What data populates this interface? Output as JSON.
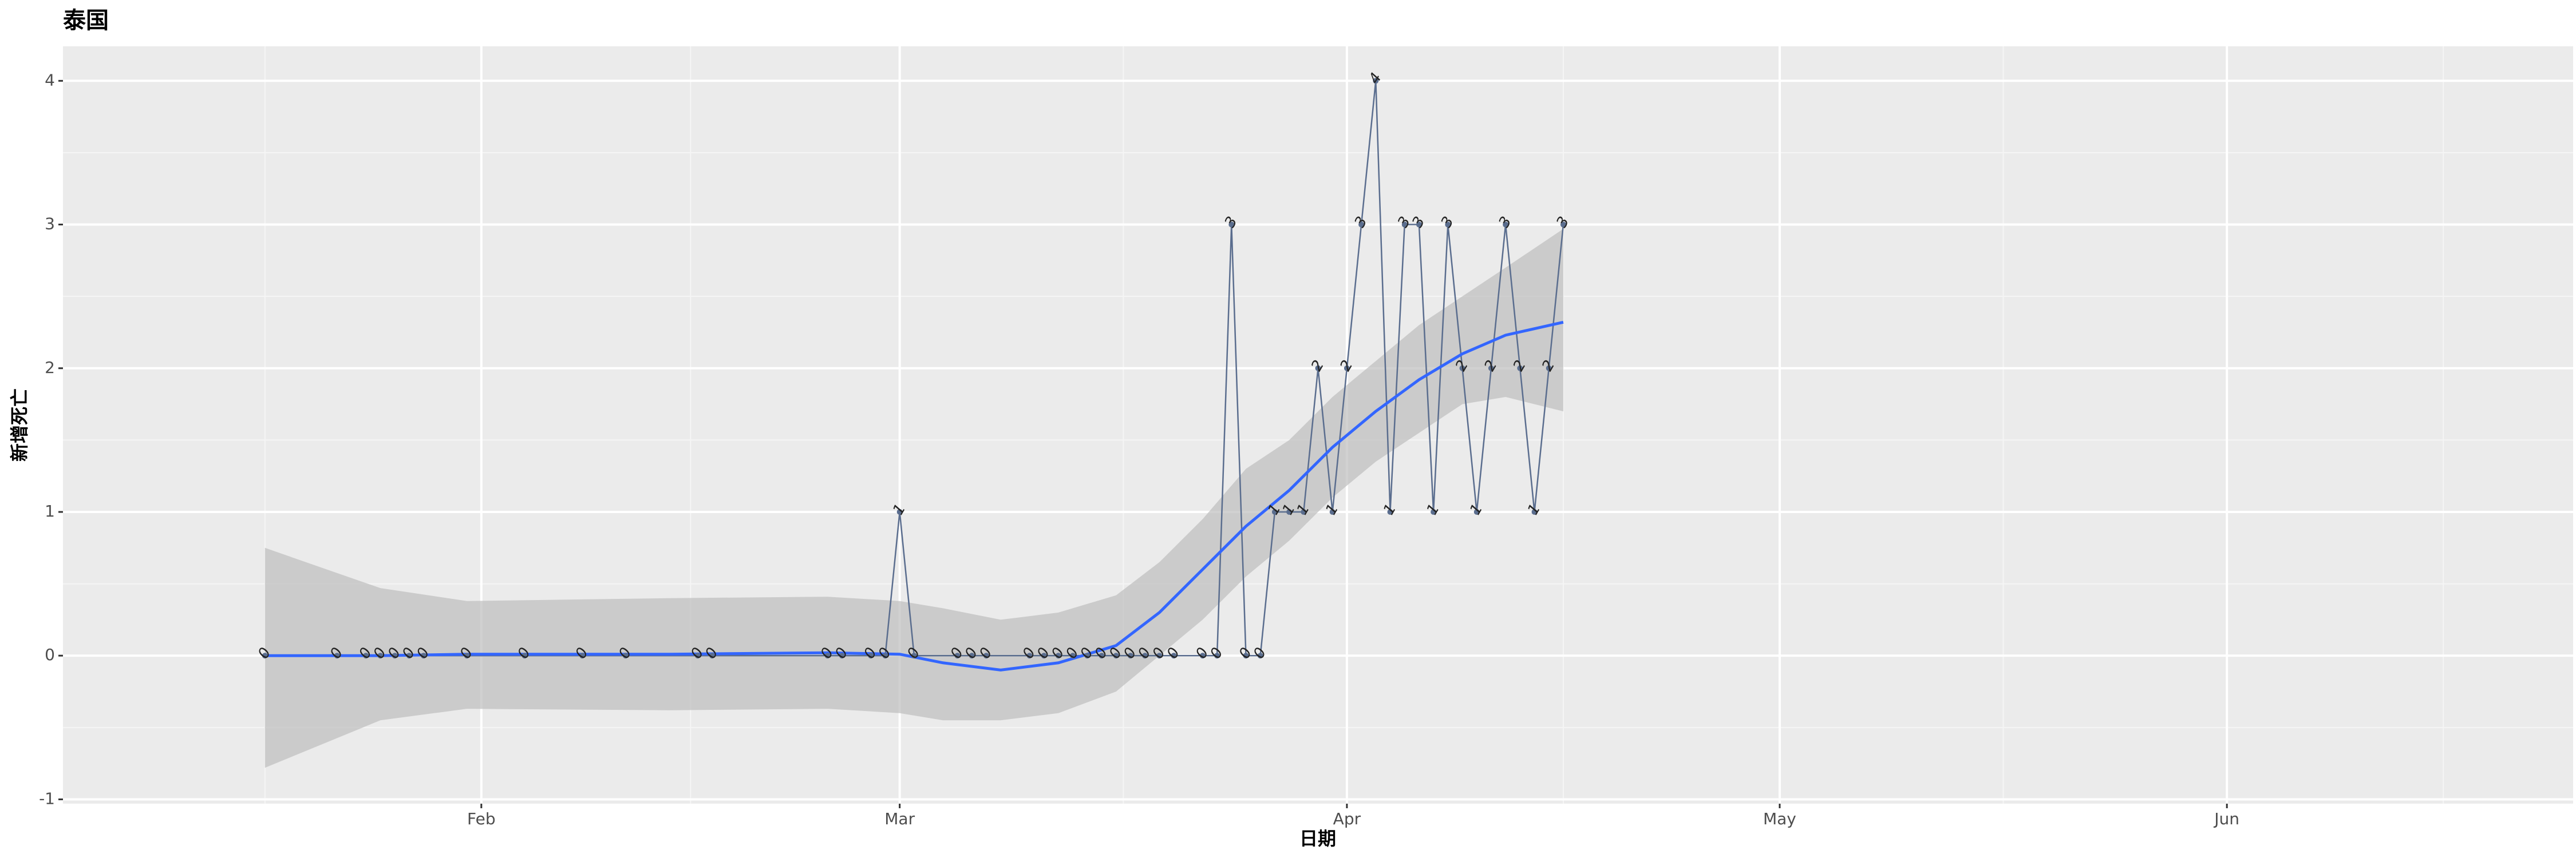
{
  "chart_data": {
    "type": "line",
    "title": "泰国",
    "x_label": "日期",
    "y_label": "新增死亡",
    "x": [
      17,
      22,
      24,
      25,
      26,
      27,
      28,
      31,
      35,
      39,
      42,
      47,
      48,
      56,
      57,
      59,
      60,
      61,
      62,
      65,
      66,
      67,
      70,
      71,
      72,
      73,
      74,
      75,
      76,
      77,
      78,
      79,
      80,
      82,
      83,
      84,
      85,
      86,
      87,
      88,
      89,
      90,
      91,
      92,
      93,
      94,
      95,
      96,
      97,
      98,
      99,
      100,
      101,
      102,
      103,
      104,
      105,
      106,
      107
    ],
    "values": [
      0,
      0,
      0,
      0,
      0,
      0,
      0,
      0,
      0,
      0,
      0,
      0,
      0,
      0,
      0,
      0,
      0,
      1,
      0,
      0,
      0,
      0,
      0,
      0,
      0,
      0,
      0,
      0,
      0,
      0,
      0,
      0,
      0,
      0,
      0,
      3,
      0,
      0,
      1,
      1,
      1,
      2,
      1,
      2,
      3,
      4,
      1,
      3,
      3,
      1,
      3,
      2,
      1,
      2,
      3,
      2,
      1,
      2,
      3
    ],
    "color": "#5a6d8e",
    "smooth": {
      "color": "#3366ff",
      "band_color": "#bdbdbd",
      "x": [
        17,
        25,
        31,
        45,
        56,
        61,
        64,
        68,
        72,
        76,
        79,
        82,
        85,
        88,
        91,
        94,
        97,
        100,
        103,
        107
      ],
      "values": [
        0,
        0,
        0.01,
        0.01,
        0.02,
        0.01,
        -0.05,
        -0.1,
        -0.05,
        0.07,
        0.3,
        0.6,
        0.9,
        1.15,
        1.45,
        1.7,
        1.92,
        2.1,
        2.23,
        2.32
      ],
      "lower": [
        -0.78,
        -0.45,
        -0.37,
        -0.38,
        -0.37,
        -0.4,
        -0.45,
        -0.45,
        -0.4,
        -0.25,
        0,
        0.25,
        0.55,
        0.8,
        1.1,
        1.35,
        1.55,
        1.75,
        1.8,
        1.7
      ],
      "upper": [
        0.75,
        0.47,
        0.38,
        0.4,
        0.41,
        0.38,
        0.33,
        0.25,
        0.3,
        0.42,
        0.65,
        0.95,
        1.3,
        1.5,
        1.8,
        2.05,
        2.3,
        2.5,
        2.7,
        2.97
      ]
    },
    "xlim": [
      3,
      177
    ],
    "xticks": [
      {
        "value": 32,
        "label": "Feb"
      },
      {
        "value": 61,
        "label": "Mar"
      },
      {
        "value": 92,
        "label": "Apr"
      },
      {
        "value": 122,
        "label": "May"
      },
      {
        "value": 153,
        "label": "Jun"
      }
    ],
    "x_minor_ticks": [
      17,
      46.5,
      76.5,
      107,
      137.5,
      168
    ],
    "ylim": [
      -1.03,
      4.24
    ],
    "yticks": [
      -1,
      0,
      1,
      2,
      3,
      4
    ],
    "y_minor_ticks": [
      -0.5,
      0.5,
      1.5,
      2.5,
      3.5
    ],
    "grid": true
  }
}
